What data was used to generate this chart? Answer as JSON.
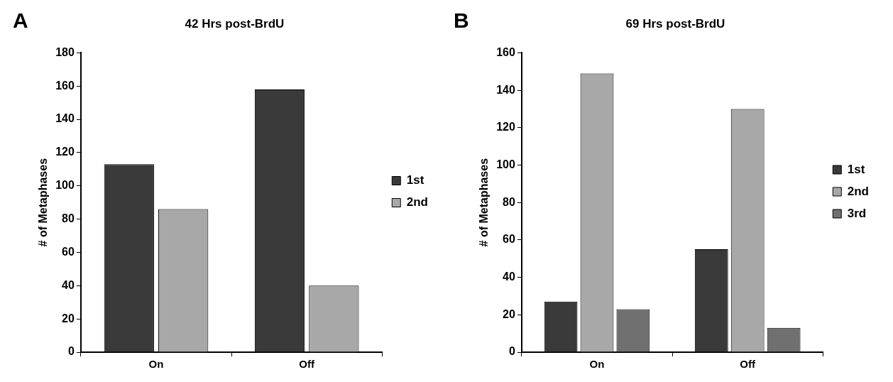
{
  "chart_data": [
    {
      "type": "bar",
      "title": "42 Hrs post-BrdU",
      "ylabel": "# of Metaphases",
      "annotations": [
        "A"
      ],
      "categories": [
        "On",
        "Off"
      ],
      "series": [
        {
          "name": "1st",
          "color": "#3a3a3a",
          "values": [
            113,
            158
          ]
        },
        {
          "name": "2nd",
          "color": "#a8a8a8",
          "values": [
            86,
            40
          ]
        }
      ],
      "ylim": [
        0,
        180
      ],
      "yticks": [
        0,
        20,
        40,
        60,
        80,
        100,
        120,
        140,
        160,
        180
      ],
      "grid": false,
      "legend": "right"
    },
    {
      "type": "bar",
      "title": "69 Hrs post-BrdU",
      "ylabel": "# of Metaphases",
      "annotations": [
        "B"
      ],
      "categories": [
        "On",
        "Off"
      ],
      "series": [
        {
          "name": "1st",
          "color": "#3a3a3a",
          "values": [
            27,
            55
          ]
        },
        {
          "name": "2nd",
          "color": "#a8a8a8",
          "values": [
            149,
            130
          ]
        },
        {
          "name": "3rd",
          "color": "#707070",
          "values": [
            23,
            13
          ]
        }
      ],
      "ylim": [
        0,
        160
      ],
      "yticks": [
        0,
        20,
        40,
        60,
        80,
        100,
        120,
        140,
        160
      ],
      "grid": false,
      "legend": "right"
    }
  ]
}
